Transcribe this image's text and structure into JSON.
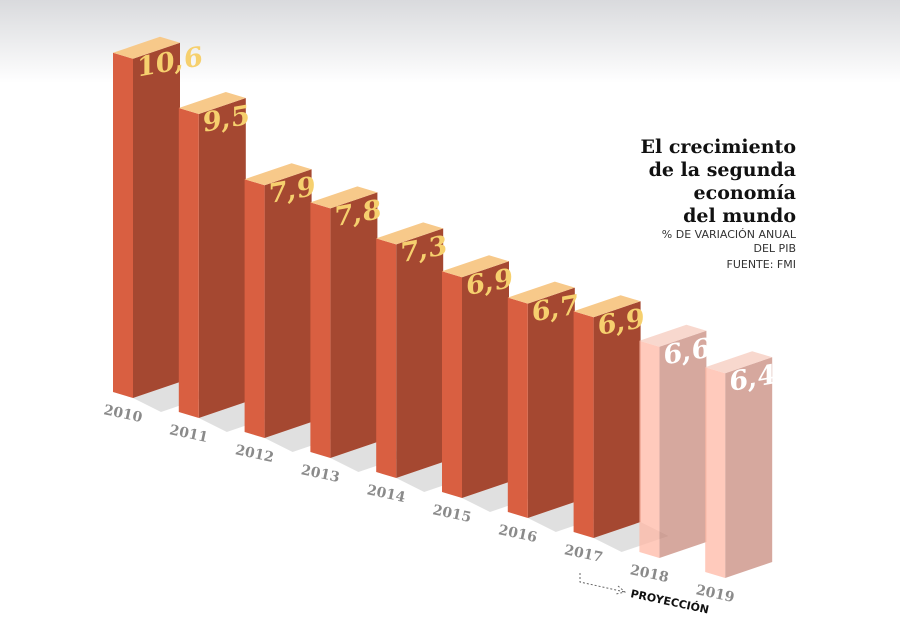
{
  "chart_data": {
    "type": "bar3d",
    "title": [
      "El crecimiento",
      "de la segunda",
      "economía",
      "del mundo"
    ],
    "subtitle": [
      "% DE VARIACIÓN ANUAL",
      "DEL PIB"
    ],
    "source": "FUENTE: FMI",
    "annotation": "PROYECCIÓN",
    "categories": [
      "2010",
      "2011",
      "2012",
      "2013",
      "2014",
      "2015",
      "2016",
      "2017",
      "2018",
      "2019"
    ],
    "values": [
      10.6,
      9.5,
      7.9,
      7.8,
      7.3,
      6.9,
      6.7,
      6.9,
      6.6,
      6.4
    ],
    "value_labels": [
      "10,6",
      "9,5",
      "7,9",
      "7,8",
      "7,3",
      "6,9",
      "6,7",
      "6,9",
      "6,6",
      "6,4"
    ],
    "colors": [
      "#c2553a",
      "#c2553a",
      "#c2553a",
      "#c2553a",
      "#c2553a",
      "#c2553a",
      "#c2553a",
      "#c2553a",
      "#eba493",
      "#eba493"
    ],
    "value_label_colors": [
      "#f6d06e",
      "#f6d06e",
      "#f6d06e",
      "#f6d06e",
      "#f6d06e",
      "#f6d06e",
      "#f6d06e",
      "#f6d06e",
      "#ffffff",
      "#ffffff"
    ]
  }
}
